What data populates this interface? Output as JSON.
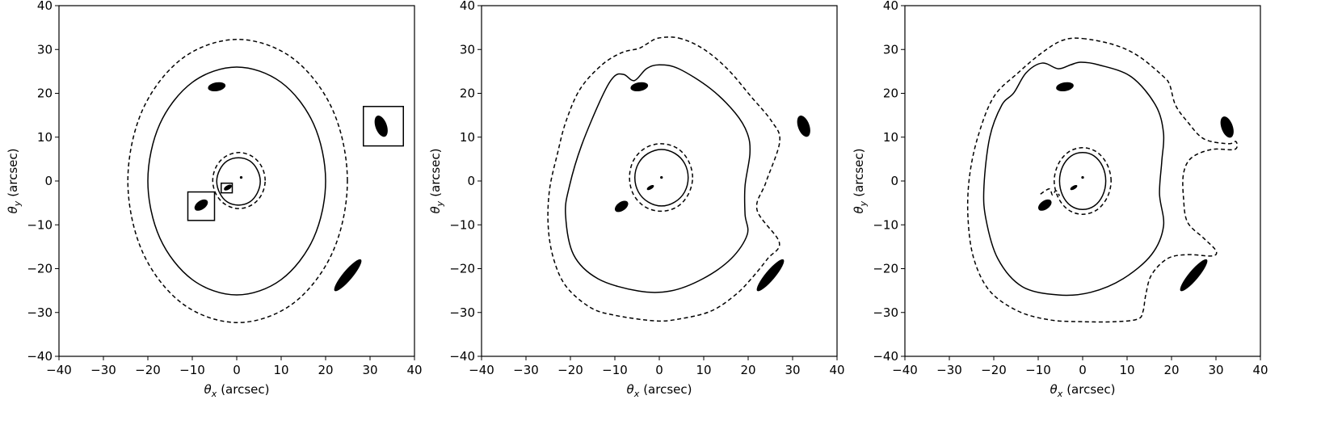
{
  "chart_data": [
    {
      "type": "line",
      "xlabel": {
        "symbol": "θ",
        "sub": "x",
        "text": "(arcsec)"
      },
      "ylabel": {
        "symbol": "θ",
        "sub": "y",
        "text": "(arcsec)"
      },
      "xlim": [
        -40,
        40
      ],
      "ylim": [
        -40,
        40
      ],
      "xticks": [
        {
          "value": -40,
          "label": "−40"
        },
        {
          "value": -30,
          "label": "−30"
        },
        {
          "value": -20,
          "label": "−20"
        },
        {
          "value": -10,
          "label": "−10"
        },
        0,
        10,
        20,
        30,
        40
      ],
      "yticks": [
        {
          "value": -40,
          "label": "−40"
        },
        {
          "value": -30,
          "label": "−30"
        },
        {
          "value": -20,
          "label": "−20"
        },
        {
          "value": -10,
          "label": "−10"
        },
        0,
        10,
        20,
        30,
        40
      ],
      "series": [
        {
          "color": "#000000",
          "dashed": true,
          "closed": true,
          "x": [
            24.9,
            21.6,
            12.6,
            0.2,
            -12.2,
            -21.2,
            -24.5,
            -21.2,
            -12.2,
            0.2,
            12.6,
            21.6
          ],
          "y": [
            0,
            16.2,
            28,
            32.3,
            28,
            16.2,
            0,
            -16.2,
            -28,
            -32.3,
            -28,
            -16.2
          ]
        },
        {
          "color": "#000000",
          "dashed": false,
          "closed": true,
          "x": [
            20,
            17.3,
            10,
            0,
            -10,
            -17.3,
            -20,
            -17.3,
            -10,
            0,
            10,
            17.3
          ],
          "y": [
            0,
            13,
            22.5,
            26,
            22.5,
            13,
            0,
            -13,
            -22.5,
            -26,
            -22.5,
            -13
          ]
        },
        {
          "color": "#000000",
          "dashed": true,
          "closed": true,
          "x": [
            6.4,
            5.6,
            3.5,
            0.5,
            -2.5,
            -4.6,
            -5.4,
            -4.6,
            -2.5,
            0.5,
            3.5,
            5.6
          ],
          "y": [
            0.1,
            3.3,
            5.6,
            6.5,
            5.6,
            3.3,
            0.1,
            -3.1,
            -5.4,
            -6.3,
            -5.4,
            -3.1
          ]
        },
        {
          "color": "#000000",
          "dashed": false,
          "closed": true,
          "x": [
            5.3,
            4.6,
            2.9,
            0.4,
            -2.1,
            -3.8,
            -4.5,
            -3.8,
            -2.1,
            0.4,
            2.9,
            4.6
          ],
          "y": [
            -0.1,
            2.6,
            4.6,
            5.3,
            4.6,
            2.6,
            -0.1,
            -2.8,
            -4.8,
            -5.5,
            -4.8,
            -2.8
          ]
        }
      ],
      "images": {
        "x": [
          -4.5,
          32.5,
          -8,
          -2,
          1,
          25
        ],
        "y": [
          21.5,
          12.5,
          -5.5,
          -1.5,
          0.8,
          -21.5
        ],
        "a": [
          2,
          2.5,
          1.7,
          1,
          0.3,
          4.6
        ],
        "b": [
          1,
          1.3,
          1,
          0.5,
          0.3,
          1.1
        ],
        "angle": [
          10,
          -70,
          35,
          30,
          0,
          50
        ],
        "color": "#000000"
      },
      "boxes": [
        {
          "x": [
            28.5,
            37.5
          ],
          "y": [
            8,
            17
          ]
        },
        {
          "x": [
            -11,
            -5
          ],
          "y": [
            -9,
            -2.5
          ]
        },
        {
          "x": [
            -3.5,
            -1
          ],
          "y": [
            -2.7,
            -0.5
          ]
        }
      ]
    },
    {
      "type": "line",
      "xlabel": {
        "symbol": "θ",
        "sub": "x",
        "text": "(arcsec)"
      },
      "ylabel": {
        "symbol": "θ",
        "sub": "y",
        "text": "(arcsec)"
      },
      "xlim": [
        -40,
        40
      ],
      "ylim": [
        -40,
        40
      ],
      "xticks": [
        {
          "value": -40,
          "label": "−40"
        },
        {
          "value": -30,
          "label": "−30"
        },
        {
          "value": -20,
          "label": "−20"
        },
        {
          "value": -10,
          "label": "−10"
        },
        0,
        10,
        20,
        30,
        40
      ],
      "yticks": [
        {
          "value": -40,
          "label": "−40"
        },
        {
          "value": -30,
          "label": "−30"
        },
        {
          "value": -20,
          "label": "−20"
        },
        {
          "value": -10,
          "label": "−10"
        },
        0,
        10,
        20,
        30,
        40
      ],
      "series": [
        {
          "color": "#000000",
          "dashed": true,
          "closed": true,
          "x": [
            4.4,
            9.8,
            15.3,
            20.7,
            25.3,
            27.1,
            24,
            22,
            27,
            24.4,
            20.7,
            17.1,
            11.6,
            4.4,
            -1.1,
            -10.2,
            -15.6,
            -21,
            -23.8,
            -25,
            -24.7,
            -22.9,
            -21,
            -17.8,
            -12.9,
            -8.4,
            -4.7,
            -2.9,
            -0.2
          ],
          "y": [
            32.6,
            30.2,
            25.6,
            19.2,
            13.6,
            9,
            -0.3,
            -6.6,
            -14,
            -17.7,
            -22.3,
            -26,
            -29.7,
            -31.5,
            -31.9,
            -30.6,
            -28.8,
            -24,
            -17.7,
            -10.3,
            -2,
            6.3,
            13.6,
            21,
            26.5,
            29.3,
            30.2,
            31.2,
            32.6
          ]
        },
        {
          "color": "#000000",
          "dashed": false,
          "closed": true,
          "x": [
            0,
            4.4,
            11.6,
            17.1,
            19.8,
            20.4,
            19.3,
            19.3,
            19.8,
            16.2,
            9.8,
            2.5,
            -4.7,
            -13.8,
            -19.3,
            -21.1,
            -20.2,
            -17.5,
            -12.9,
            -10.2,
            -8,
            -5.6,
            -2.9
          ],
          "y": [
            26.5,
            25.6,
            21,
            15.5,
            10.9,
            6.3,
            -1.1,
            -7.6,
            -12.2,
            -17.7,
            -22.3,
            -25.1,
            -25.1,
            -22.3,
            -16.8,
            -7.6,
            -1.1,
            8.1,
            19.2,
            23.8,
            24.3,
            22.9,
            25.6
          ]
        },
        {
          "color": "#000000",
          "dashed": true,
          "closed": true,
          "x": [
            7.5,
            6.5,
            4,
            0.4,
            -3.2,
            -5.8,
            -6.7,
            -5.8,
            -3.2,
            0.4,
            4,
            6.5
          ],
          "y": [
            0.8,
            4.7,
            7.5,
            8.5,
            7.5,
            4.7,
            0.8,
            -3.1,
            -5.9,
            -6.9,
            -5.9,
            -3.1
          ]
        },
        {
          "color": "#000000",
          "dashed": false,
          "closed": true,
          "x": [
            6.5,
            5.7,
            3.5,
            0.5,
            -2.5,
            -4.7,
            -5.5,
            -4.7,
            -2.5,
            0.5,
            3.5,
            5.7
          ],
          "y": [
            0.75,
            4,
            6.3,
            7.2,
            6.3,
            4,
            0.75,
            -2.5,
            -4.8,
            -5.7,
            -4.8,
            -2.5
          ]
        }
      ],
      "images": {
        "x": [
          -4.5,
          32.5,
          -8.5,
          -2,
          0.5,
          25
        ],
        "y": [
          21.5,
          12.5,
          -5.8,
          -1.5,
          0.8,
          -21.5
        ],
        "a": [
          2,
          2.5,
          1.7,
          0.9,
          0.3,
          4.6
        ],
        "b": [
          1,
          1.3,
          1,
          0.4,
          0.3,
          1.1
        ],
        "angle": [
          10,
          -70,
          35,
          30,
          0,
          50
        ],
        "color": "#000000"
      },
      "boxes": []
    },
    {
      "type": "line",
      "xlabel": {
        "symbol": "θ",
        "sub": "x",
        "text": "(arcsec)"
      },
      "ylabel": {
        "symbol": "θ",
        "sub": "y",
        "text": "(arcsec)"
      },
      "xlim": [
        -40,
        40
      ],
      "ylim": [
        -40,
        40
      ],
      "xticks": [
        {
          "value": -40,
          "label": "−40"
        },
        {
          "value": -30,
          "label": "−30"
        },
        {
          "value": -20,
          "label": "−20"
        },
        {
          "value": -10,
          "label": "−10"
        },
        0,
        10,
        20,
        30,
        40
      ],
      "yticks": [
        {
          "value": -40,
          "label": "−40"
        },
        {
          "value": -30,
          "label": "−30"
        },
        {
          "value": -20,
          "label": "−20"
        },
        {
          "value": -10,
          "label": "−10"
        },
        0,
        10,
        20,
        30,
        40
      ],
      "series": [
        {
          "color": "#000000",
          "dashed": true,
          "closed": true,
          "x": [
            0,
            7.3,
            12.7,
            18.2,
            19.6,
            20.9,
            23.6,
            27.3,
            32.7,
            34.5,
            34.2,
            29.1,
            24.5,
            22.7,
            22.7,
            23.6,
            27.3,
            30,
            29.1,
            23.6,
            19.1,
            15.5,
            14.2,
            13.6,
            12.4,
            7.3,
            0,
            -7.3,
            -14.5,
            -20.9,
            -24.5,
            -25.8,
            -25.5,
            -23.6,
            -20,
            -14.5,
            -9.1,
            -4.5
          ],
          "y": [
            32.5,
            31,
            28.4,
            23.8,
            21.9,
            17.3,
            13.5,
            9.6,
            8.5,
            9,
            7.2,
            7.2,
            5.3,
            1.7,
            -3.9,
            -9.4,
            -13.1,
            -15.9,
            -17.1,
            -16.8,
            -17.7,
            -21.4,
            -26,
            -29.7,
            -31.5,
            -32.1,
            -32.1,
            -31.7,
            -29.7,
            -25.1,
            -17.7,
            -8.5,
            0.7,
            10,
            19.2,
            24.7,
            29.3,
            32.1
          ]
        },
        {
          "color": "#000000",
          "dashed": false,
          "closed": true,
          "x": [
            -0.4,
            3.6,
            10.9,
            16.4,
            18.2,
            17.8,
            17.3,
            18.2,
            15.5,
            9.1,
            1.8,
            -5.5,
            -13.6,
            -19.1,
            -21.8,
            -22.2,
            -20.9,
            -18.2,
            -15.5,
            -12.7,
            -9.1,
            -5.5,
            -2.7
          ],
          "y": [
            27.1,
            26.5,
            23.8,
            17.3,
            10.9,
            4.4,
            -3,
            -10.3,
            -16.8,
            -22.3,
            -25.4,
            -26,
            -24.1,
            -17.7,
            -8.5,
            -1.1,
            10,
            17.3,
            20.1,
            24.7,
            26.9,
            25.6,
            26.5
          ]
        },
        {
          "color": "#000000",
          "dashed": true,
          "closed": true,
          "x": [
            6.4,
            5.5,
            3.2,
            0,
            -3.2,
            -5.5,
            -6.4,
            -5.5,
            -3.2,
            0,
            3.2,
            5.5
          ],
          "y": [
            0,
            3.8,
            6.6,
            7.6,
            6.6,
            3.8,
            0,
            -3.8,
            -6.6,
            -7.6,
            -6.6,
            -3.8
          ]
        },
        {
          "color": "#000000",
          "dashed": false,
          "closed": true,
          "x": [
            5.2,
            4.5,
            2.6,
            0,
            -2.6,
            -4.5,
            -5.2,
            -4.5,
            -2.6,
            0,
            2.6,
            4.5
          ],
          "y": [
            0,
            3.3,
            5.7,
            6.5,
            5.7,
            3.3,
            0,
            -3.3,
            -5.7,
            -6.5,
            -5.7,
            -3.3
          ]
        },
        {
          "color": "#000000",
          "dashed": true,
          "closed": false,
          "x": [
            -9.5,
            -7.5,
            -6.8,
            -6,
            -5.2
          ],
          "y": [
            -3,
            -1.8,
            -3.2,
            -2.2,
            -3.4
          ]
        }
      ],
      "images": {
        "x": [
          -4,
          32.5,
          -8.5,
          -2,
          0,
          25
        ],
        "y": [
          21.5,
          12.3,
          -5.5,
          -1.5,
          0.8,
          -21.5
        ],
        "a": [
          2,
          2.5,
          1.7,
          0.9,
          0.3,
          4.6
        ],
        "b": [
          1,
          1.3,
          1,
          0.4,
          0.3,
          1.1
        ],
        "angle": [
          10,
          -70,
          35,
          30,
          0,
          50
        ],
        "color": "#000000"
      },
      "boxes": []
    }
  ]
}
